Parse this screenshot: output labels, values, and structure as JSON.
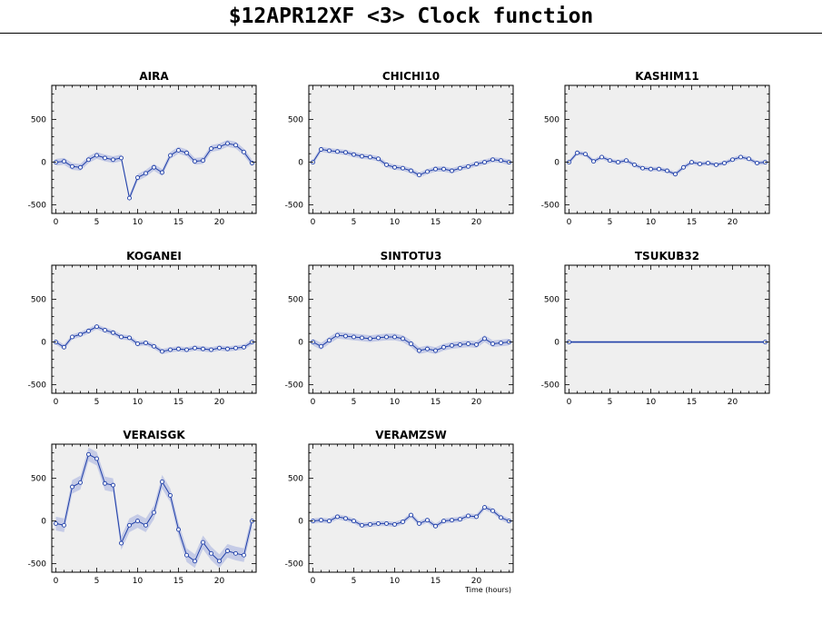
{
  "page": {
    "title": "$12APR12XF <3>  Clock function"
  },
  "colors": {
    "panel_bg": "#efefef",
    "line": "#1f3fa8",
    "band": "#c5cbe6",
    "axis": "#000000"
  },
  "chart_data": [
    {
      "type": "line",
      "title": "AIRA",
      "xlabel": "",
      "ylabel": "",
      "xlim": [
        -0.5,
        24.5
      ],
      "ylim": [
        -600,
        900
      ],
      "xticks": [
        "0",
        "5",
        "10",
        "15",
        "20"
      ],
      "yticks": [
        "-500",
        "0",
        "500"
      ],
      "x": [
        0,
        1,
        2,
        3,
        4,
        5,
        6,
        7,
        8,
        9,
        10,
        11,
        12,
        13,
        14,
        15,
        16,
        17,
        18,
        19,
        20,
        21,
        22,
        23,
        24
      ],
      "values": [
        0,
        10,
        -50,
        -60,
        30,
        80,
        50,
        30,
        50,
        -420,
        -180,
        -130,
        -60,
        -120,
        80,
        140,
        110,
        10,
        20,
        160,
        180,
        220,
        200,
        120,
        -10
      ],
      "band": 40
    },
    {
      "type": "line",
      "title": "CHICHI10",
      "xlabel": "",
      "ylabel": "",
      "xlim": [
        -0.5,
        24.5
      ],
      "ylim": [
        -600,
        900
      ],
      "xticks": [
        "0",
        "5",
        "10",
        "15",
        "20"
      ],
      "yticks": [
        "-500",
        "0",
        "500"
      ],
      "x": [
        0,
        1,
        2,
        3,
        4,
        5,
        6,
        7,
        8,
        9,
        10,
        11,
        12,
        13,
        14,
        15,
        16,
        17,
        18,
        19,
        20,
        21,
        22,
        23,
        24
      ],
      "values": [
        0,
        150,
        135,
        125,
        115,
        90,
        70,
        60,
        40,
        -30,
        -60,
        -70,
        -100,
        -150,
        -110,
        -80,
        -80,
        -100,
        -70,
        -50,
        -20,
        0,
        30,
        20,
        0
      ],
      "band": 30
    },
    {
      "type": "line",
      "title": "KASHIM11",
      "xlabel": "",
      "ylabel": "",
      "xlim": [
        -0.5,
        24.5
      ],
      "ylim": [
        -600,
        900
      ],
      "xticks": [
        "0",
        "5",
        "10",
        "15",
        "20"
      ],
      "yticks": [
        "-500",
        "0",
        "500"
      ],
      "x": [
        0,
        1,
        2,
        3,
        4,
        5,
        6,
        7,
        8,
        9,
        10,
        11,
        12,
        13,
        14,
        15,
        16,
        17,
        18,
        19,
        20,
        21,
        22,
        23,
        24
      ],
      "values": [
        0,
        110,
        95,
        10,
        60,
        20,
        0,
        20,
        -30,
        -70,
        -80,
        -80,
        -100,
        -140,
        -60,
        0,
        -20,
        -10,
        -30,
        -10,
        30,
        60,
        40,
        -10,
        0
      ],
      "band": 25
    },
    {
      "type": "line",
      "title": "KOGANEI",
      "xlabel": "",
      "ylabel": "",
      "xlim": [
        -0.5,
        24.5
      ],
      "ylim": [
        -600,
        900
      ],
      "xticks": [
        "0",
        "5",
        "10",
        "15",
        "20"
      ],
      "yticks": [
        "-500",
        "0",
        "500"
      ],
      "x": [
        0,
        1,
        2,
        3,
        4,
        5,
        6,
        7,
        8,
        9,
        10,
        11,
        12,
        13,
        14,
        15,
        16,
        17,
        18,
        19,
        20,
        21,
        22,
        23,
        24
      ],
      "values": [
        0,
        -60,
        60,
        90,
        130,
        180,
        140,
        110,
        60,
        50,
        -20,
        -10,
        -50,
        -110,
        -90,
        -80,
        -90,
        -70,
        -80,
        -90,
        -70,
        -80,
        -70,
        -60,
        0
      ],
      "band": 30
    },
    {
      "type": "line",
      "title": "SINTOTU3",
      "xlabel": "",
      "ylabel": "",
      "xlim": [
        -0.5,
        24.5
      ],
      "ylim": [
        -600,
        900
      ],
      "xticks": [
        "0",
        "5",
        "10",
        "15",
        "20"
      ],
      "yticks": [
        "-500",
        "0",
        "500"
      ],
      "x": [
        0,
        1,
        2,
        3,
        4,
        5,
        6,
        7,
        8,
        9,
        10,
        11,
        12,
        13,
        14,
        15,
        16,
        17,
        18,
        19,
        20,
        21,
        22,
        23,
        24
      ],
      "values": [
        0,
        -50,
        20,
        80,
        70,
        60,
        50,
        40,
        50,
        60,
        60,
        40,
        -20,
        -100,
        -80,
        -100,
        -60,
        -40,
        -30,
        -20,
        -30,
        40,
        -20,
        -10,
        0
      ],
      "band": 40
    },
    {
      "type": "line",
      "title": "TSUKUB32",
      "xlabel": "",
      "ylabel": "",
      "xlim": [
        -0.5,
        24.5
      ],
      "ylim": [
        -600,
        900
      ],
      "xticks": [
        "0",
        "5",
        "10",
        "15",
        "20"
      ],
      "yticks": [
        "-500",
        "0",
        "500"
      ],
      "x": [
        0,
        24
      ],
      "values": [
        0,
        0
      ],
      "band": 0
    },
    {
      "type": "line",
      "title": "VERAISGK",
      "xlabel": "",
      "ylabel": "",
      "xlim": [
        -0.5,
        24.5
      ],
      "ylim": [
        -600,
        900
      ],
      "xticks": [
        "0",
        "5",
        "10",
        "15",
        "20"
      ],
      "yticks": [
        "-500",
        "0",
        "500"
      ],
      "x": [
        0,
        1,
        2,
        3,
        4,
        5,
        6,
        7,
        8,
        9,
        10,
        11,
        12,
        13,
        14,
        15,
        16,
        17,
        18,
        19,
        20,
        21,
        22,
        23,
        24
      ],
      "values": [
        -30,
        -50,
        400,
        450,
        780,
        730,
        440,
        420,
        -260,
        -50,
        0,
        -50,
        100,
        460,
        300,
        -100,
        -400,
        -470,
        -250,
        -380,
        -470,
        -350,
        -380,
        -400,
        0
      ],
      "band": 80
    },
    {
      "type": "line",
      "title": "VERAMZSW",
      "xlabel": "Time (hours)",
      "ylabel": "",
      "xlim": [
        -0.5,
        24.5
      ],
      "ylim": [
        -600,
        900
      ],
      "xticks": [
        "0",
        "5",
        "10",
        "15",
        "20"
      ],
      "yticks": [
        "-500",
        "0",
        "500"
      ],
      "x": [
        0,
        1,
        2,
        3,
        4,
        5,
        6,
        7,
        8,
        9,
        10,
        11,
        12,
        13,
        14,
        15,
        16,
        17,
        18,
        19,
        20,
        21,
        22,
        23,
        24
      ],
      "values": [
        0,
        10,
        0,
        50,
        30,
        0,
        -50,
        -40,
        -30,
        -30,
        -40,
        -10,
        70,
        -30,
        10,
        -60,
        0,
        10,
        20,
        60,
        50,
        160,
        120,
        40,
        0
      ],
      "band": 30
    }
  ]
}
